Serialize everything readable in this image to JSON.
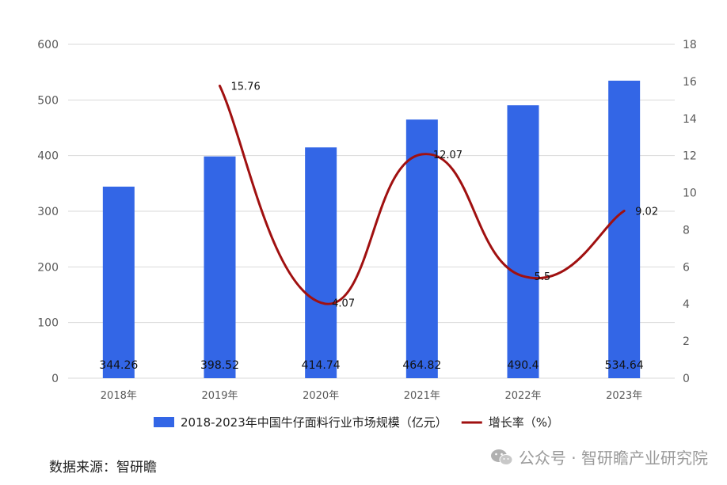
{
  "chart_data": {
    "type": "bar+line",
    "categories": [
      "2018年",
      "2019年",
      "2020年",
      "2021年",
      "2022年",
      "2023年"
    ],
    "series": [
      {
        "name": "2018-2023年中国牛仔面料行业市场规模（亿元）",
        "type": "bar",
        "axis": "left",
        "values": [
          344.26,
          398.52,
          414.74,
          464.82,
          490.4,
          534.64
        ],
        "labels": [
          "344.26",
          "398.52",
          "414.74",
          "464.82",
          "490.4",
          "534.64"
        ],
        "color": "#3366e6"
      },
      {
        "name": "增长率（%）",
        "type": "line",
        "axis": "right",
        "values": [
          null,
          15.76,
          4.07,
          12.07,
          5.5,
          9.02
        ],
        "labels": [
          "",
          "15.76",
          "4.07",
          "12.07",
          "5.5",
          "9.02"
        ],
        "color": "#a01010"
      }
    ],
    "y_left": {
      "min": 0,
      "max": 600,
      "ticks": [
        "0",
        "100",
        "200",
        "300",
        "400",
        "500",
        "600"
      ]
    },
    "y_right": {
      "min": 0,
      "max": 18,
      "ticks": [
        "0",
        "2",
        "4",
        "6",
        "8",
        "10",
        "12",
        "14",
        "16",
        "18"
      ]
    },
    "grid": true,
    "legend_position": "bottom"
  },
  "source_text": "数据来源：智研瞻",
  "watermark_text": "公众号 · 智研瞻产业研究院",
  "watermark_icon": "wechat-icon"
}
